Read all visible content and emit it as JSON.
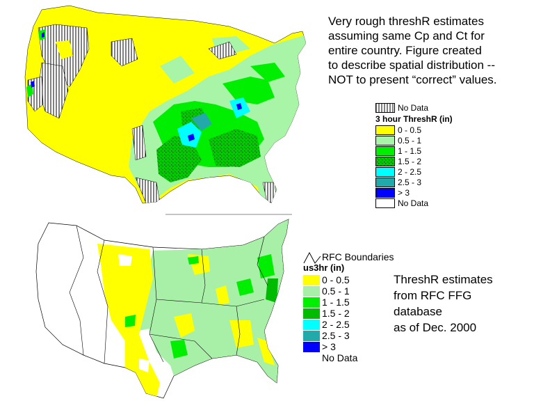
{
  "top_note": {
    "lines": [
      "Very rough threshR estimates",
      "assuming same Cp and Ct for",
      "entire country.  Figure created",
      "to describe spatial distribution --",
      "NOT to present “correct” values."
    ]
  },
  "top_legend": {
    "no_data_header": "No Data",
    "title": "3 hour ThreshR (in)",
    "items": [
      {
        "label": "0 - 0.5",
        "color": "#ffff00"
      },
      {
        "label": "0.5 - 1",
        "color": "#a8f5a8"
      },
      {
        "label": "1 - 1.5",
        "color": "#00ee00"
      },
      {
        "label": "1.5 - 2",
        "color": "#33bb33"
      },
      {
        "label": "2 - 2.5",
        "color": "#00ffff"
      },
      {
        "label": "2.5 - 3",
        "color": "#22aaaa"
      },
      {
        "label": "> 3",
        "color": "#0000ff"
      },
      {
        "label": "No Data",
        "color": "#ffffff"
      }
    ]
  },
  "bottom_legend": {
    "boundary_label": "RFC Boundaries",
    "title": "us3hr (in)",
    "items": [
      {
        "label": "0 - 0.5",
        "color": "#ffff00"
      },
      {
        "label": "0.5 - 1",
        "color": "#a8f0a8"
      },
      {
        "label": "1 - 1.5",
        "color": "#00ee00"
      },
      {
        "label": "1.5 - 2",
        "color": "#00bb00"
      },
      {
        "label": "2 - 2.5",
        "color": "#00ffff"
      },
      {
        "label": "2.5 - 3",
        "color": "#22aaaa"
      },
      {
        "label": "> 3",
        "color": "#0000ff"
      },
      {
        "label": "No Data",
        "color": "#ffffff"
      }
    ]
  },
  "bottom_note": {
    "lines": [
      "ThreshR estimates",
      "from RFC FFG",
      "database",
      "as of Dec. 2000"
    ]
  }
}
